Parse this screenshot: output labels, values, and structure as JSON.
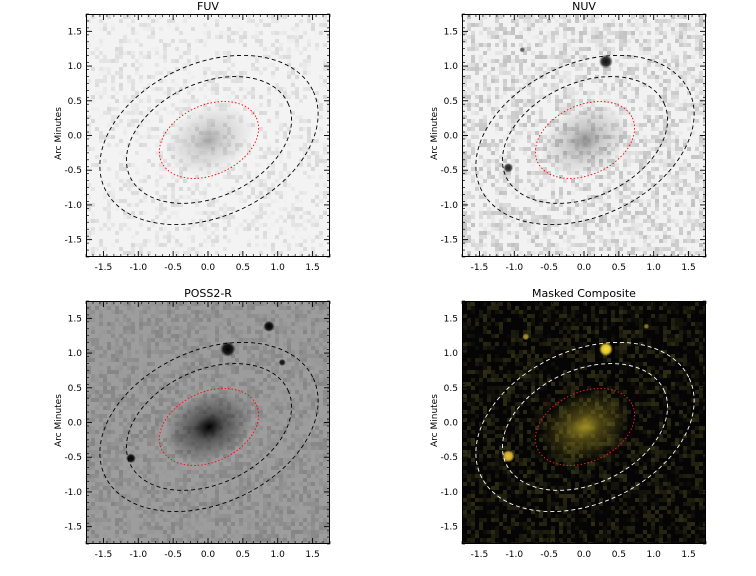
{
  "panels": [
    {
      "title": "FUV",
      "ylabel": "Arc Minutes",
      "background": "#f3f3f3",
      "noise_dark": "#b8b8b8",
      "noise_density": 0.35,
      "noise_opacity_max": 0.45,
      "galaxy_color": "#6f6f6f",
      "galaxy_strength": 0.55,
      "ellipse_outer_color": "#000000",
      "ellipse_inner_color": "#ff0000",
      "sources": []
    },
    {
      "title": "NUV",
      "ylabel": "Arc Minutes",
      "background": "#f2f2f2",
      "noise_dark": "#999999",
      "noise_density": 0.55,
      "noise_opacity_max": 0.55,
      "galaxy_color": "#555555",
      "galaxy_strength": 0.6,
      "ellipse_outer_color": "#000000",
      "ellipse_inner_color": "#ff0000",
      "sources": [
        {
          "x": 0.3,
          "y": 1.08,
          "r": 0.1,
          "color": "#111111"
        },
        {
          "x": -1.1,
          "y": -0.45,
          "r": 0.07,
          "color": "#222222"
        },
        {
          "x": -0.9,
          "y": 1.25,
          "r": 0.04,
          "color": "#555555"
        }
      ]
    },
    {
      "title": "POSS2-R",
      "ylabel": "Arc Minutes",
      "background": "#9d9d9d",
      "noise_dark": "#6c6c6c",
      "noise_density": 0.6,
      "noise_opacity_max": 0.5,
      "galaxy_color": "#000000",
      "galaxy_strength": 1.0,
      "ellipse_outer_color": "#000000",
      "ellipse_inner_color": "#ff0000",
      "sources": [
        {
          "x": 0.27,
          "y": 1.07,
          "r": 0.11,
          "color": "#000000"
        },
        {
          "x": 0.86,
          "y": 1.4,
          "r": 0.08,
          "color": "#000000"
        },
        {
          "x": 1.05,
          "y": 0.88,
          "r": 0.05,
          "color": "#111111"
        },
        {
          "x": -1.12,
          "y": -0.5,
          "r": 0.07,
          "color": "#000000"
        }
      ]
    },
    {
      "title": "Masked Composite",
      "ylabel": "Arc Minutes",
      "background": "#050505",
      "noise_dark": "#4a4a20",
      "noise_density": 0.55,
      "noise_opacity_max": 0.6,
      "galaxy_color": "#b9a52a",
      "galaxy_strength": 0.85,
      "ellipse_outer_color": "#ffffff",
      "ellipse_inner_color": "#ff2020",
      "sources": [
        {
          "x": 0.3,
          "y": 1.07,
          "r": 0.1,
          "color": "#ffe233"
        },
        {
          "x": -1.1,
          "y": -0.47,
          "r": 0.09,
          "color": "#e8c235"
        },
        {
          "x": -0.85,
          "y": 1.25,
          "r": 0.05,
          "color": "#a89030"
        },
        {
          "x": 0.88,
          "y": 1.4,
          "r": 0.04,
          "color": "#8f7a20"
        }
      ]
    }
  ],
  "axis": {
    "range": [
      -1.75,
      1.75
    ],
    "ticks": [
      -1.5,
      -1.0,
      -0.5,
      0.0,
      0.5,
      1.0,
      1.5
    ],
    "tick_labels": [
      "-1.5",
      "-1.0",
      "-0.5",
      "0.0",
      "0.5",
      "1.0",
      "1.5"
    ],
    "minor_step": 0.1
  },
  "ellipses": {
    "center": [
      0.0,
      -0.05
    ],
    "angle_deg": 25,
    "outer_semi_axes": [
      1.65,
      1.1
    ],
    "middle_semi_axes": [
      1.25,
      0.82
    ],
    "inner_semi_axes": [
      0.75,
      0.5
    ]
  }
}
